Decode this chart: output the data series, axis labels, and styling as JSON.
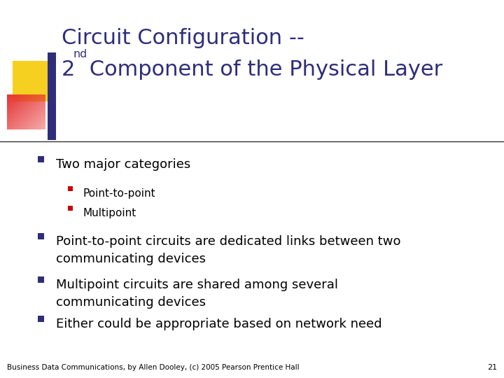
{
  "title_line1": "Circuit Configuration --",
  "title_line2_prefix": "2",
  "title_line2_super": "nd",
  "title_line2_suffix": " Component of the Physical Layer",
  "title_color": "#2E2D7A",
  "background_color": "#FFFFFF",
  "bullet_color": "#2E2D7A",
  "sub_bullet_color": "#CC0000",
  "bullet_text_color": "#000000",
  "bullets": [
    {
      "level": 1,
      "text": "Two major categories"
    },
    {
      "level": 2,
      "text": "Point-to-point"
    },
    {
      "level": 2,
      "text": "Multipoint"
    },
    {
      "level": 1,
      "text": "Point-to-point circuits are dedicated links between two\ncommunicating devices"
    },
    {
      "level": 1,
      "text": "Multipoint circuits are shared among several\ncommunicating devices"
    },
    {
      "level": 1,
      "text": "Either could be appropriate based on network need"
    }
  ],
  "footer_text": "Business Data Communications, by Allen Dooley, (c) 2005 Pearson Prentice Hall",
  "footer_page": "21",
  "footer_color": "#000000",
  "separator_color": "#333333",
  "title_font_size": 22,
  "bullet_font_size": 13,
  "sub_bullet_font_size": 11,
  "footer_font_size": 7.5
}
